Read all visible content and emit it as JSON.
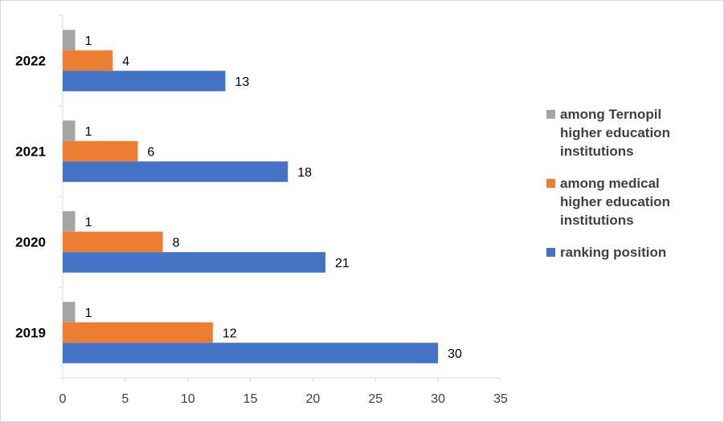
{
  "chart_data": {
    "type": "bar",
    "orientation": "horizontal",
    "categories": [
      "2019",
      "2020",
      "2021",
      "2022"
    ],
    "series": [
      {
        "name": "among Ternopil higher education institutions",
        "color": "#a5a5a5",
        "values": [
          1,
          1,
          1,
          1
        ]
      },
      {
        "name": "among medical higher education institutions",
        "color": "#ed7d31",
        "values": [
          12,
          8,
          6,
          4
        ]
      },
      {
        "name": "ranking position",
        "color": "#4472c4",
        "values": [
          30,
          21,
          18,
          13
        ]
      }
    ],
    "xlim": [
      0,
      35
    ],
    "x_ticks": [
      "0",
      "5",
      "10",
      "15",
      "20",
      "25",
      "30",
      "35"
    ],
    "legend_position": "right",
    "grid": false
  },
  "legend": {
    "items": [
      {
        "label": "among Ternopil higher education institutions",
        "color": "#a5a5a5"
      },
      {
        "label": "among medical higher education institutions",
        "color": "#ed7d31"
      },
      {
        "label": "ranking position",
        "color": "#4472c4"
      }
    ]
  }
}
